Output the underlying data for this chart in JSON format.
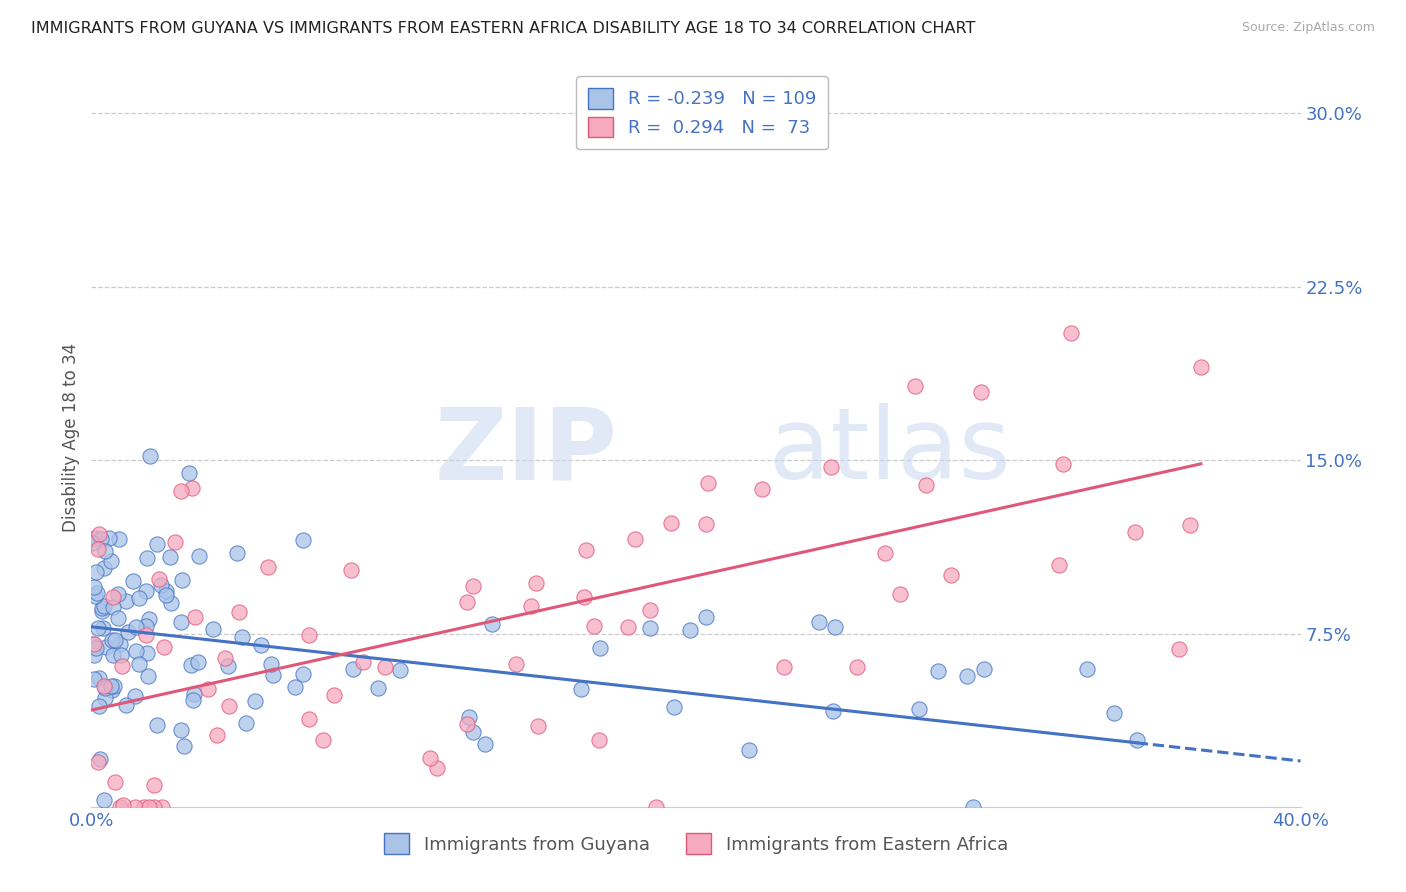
{
  "title": "IMMIGRANTS FROM GUYANA VS IMMIGRANTS FROM EASTERN AFRICA DISABILITY AGE 18 TO 34 CORRELATION CHART",
  "source": "Source: ZipAtlas.com",
  "legend_line1": "R = -0.239   N = 109",
  "legend_line2": "R =  0.294   N =  73",
  "xlabel_blue": "Immigrants from Guyana",
  "xlabel_pink": "Immigrants from Eastern Africa",
  "ylabel": "Disability Age 18 to 34",
  "blue_scatter_color": "#aac4e8",
  "pink_scatter_color": "#f5aabf",
  "blue_line_color": "#4472c4",
  "pink_line_color": "#e05878",
  "text_color": "#4472c4",
  "axis_color": "#4472c4",
  "watermark_zip": "ZIP",
  "watermark_atlas": "atlas",
  "xlim": [
    0.0,
    0.4
  ],
  "ylim": [
    0.0,
    0.32
  ],
  "xtick_positions": [
    0.0,
    0.05,
    0.1,
    0.15,
    0.2,
    0.25,
    0.3,
    0.35,
    0.4
  ],
  "ytick_positions": [
    0.0,
    0.075,
    0.15,
    0.225,
    0.3
  ],
  "grid_color": "#cccccc",
  "title_fontsize": 11.5,
  "tick_fontsize": 13,
  "ylabel_fontsize": 12,
  "blue_intercept": 0.078,
  "blue_slope": -0.145,
  "pink_intercept": 0.042,
  "pink_slope": 0.29
}
